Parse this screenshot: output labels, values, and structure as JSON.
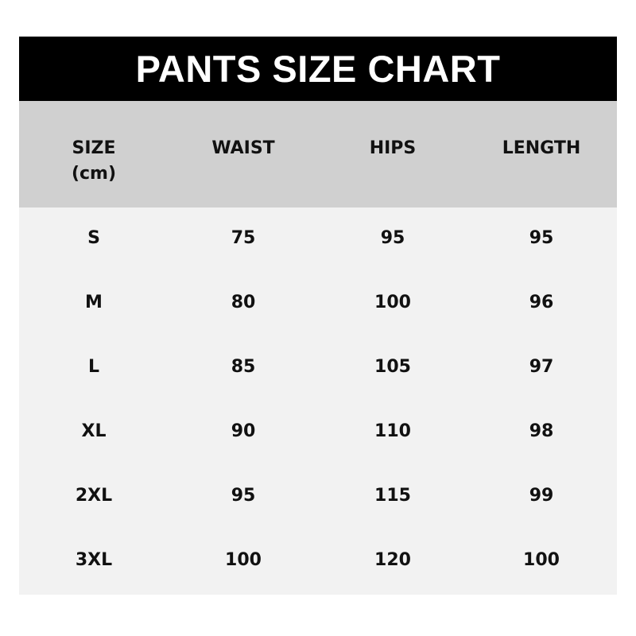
{
  "chart_data": {
    "type": "table",
    "title": "PANTS SIZE CHART",
    "columns": [
      "SIZE\n(cm)",
      "WAIST",
      "HIPS",
      "LENGTH"
    ],
    "column_lines": [
      [
        "SIZE",
        "(cm)"
      ],
      [
        "WAIST"
      ],
      [
        "HIPS"
      ],
      [
        "LENGTH"
      ]
    ],
    "rows": [
      [
        "S",
        "75",
        "95",
        "95"
      ],
      [
        "M",
        "80",
        "100",
        "96"
      ],
      [
        "L",
        "85",
        "105",
        "97"
      ],
      [
        "XL",
        "90",
        "110",
        "98"
      ],
      [
        "2XL",
        "95",
        "115",
        "99"
      ],
      [
        "3XL",
        "100",
        "120",
        "100"
      ]
    ]
  },
  "colors": {
    "title_bg": "#000000",
    "header_bg": "#d0d0d0",
    "body_bg": "#f2f2f2"
  }
}
